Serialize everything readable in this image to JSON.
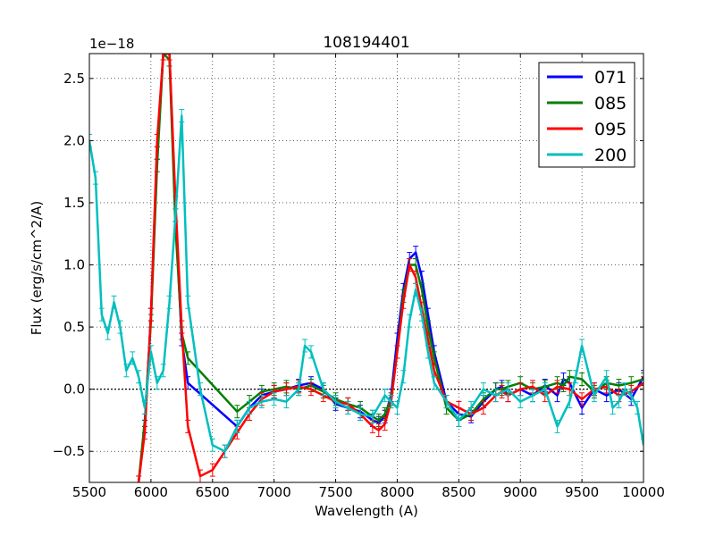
{
  "chart_data": {
    "type": "line",
    "title": "108194401",
    "xlabel": "Wavelength (A)",
    "ylabel": "Flux (erg/s/cm^2/A)",
    "offset_label": "1e−18",
    "xlim": [
      5500,
      10000
    ],
    "ylim": [
      -0.75,
      2.7
    ],
    "xticks": [
      5500,
      6000,
      6500,
      7000,
      7500,
      8000,
      8500,
      9000,
      9500,
      10000
    ],
    "xtick_labels": [
      "5500",
      "6000",
      "6500",
      "7000",
      "7500",
      "8000",
      "8500",
      "9000",
      "9500",
      "10000"
    ],
    "yticks": [
      -0.5,
      0.0,
      0.5,
      1.0,
      1.5,
      2.0,
      2.5
    ],
    "ytick_labels": [
      "−0.5",
      "0.0",
      "0.5",
      "1.0",
      "1.5",
      "2.0",
      "2.5"
    ],
    "grid": true,
    "zero_line": 0.0,
    "legend_position": "top-right",
    "series": [
      {
        "name": "071",
        "color": "#0000ff",
        "x": [
          5900,
          5950,
          6000,
          6050,
          6100,
          6150,
          6200,
          6250,
          6300,
          6700,
          6800,
          6900,
          7000,
          7100,
          7200,
          7300,
          7400,
          7500,
          7600,
          7700,
          7800,
          7850,
          7900,
          7950,
          8000,
          8050,
          8100,
          8150,
          8200,
          8250,
          8300,
          8400,
          8500,
          8600,
          8700,
          8800,
          8850,
          8900,
          9000,
          9100,
          9200,
          9300,
          9350,
          9400,
          9500,
          9600,
          9700,
          9800,
          9900,
          10000
        ],
        "y": [
          -0.75,
          -0.3,
          0.6,
          1.9,
          2.7,
          2.7,
          1.4,
          0.4,
          0.05,
          -0.3,
          -0.15,
          -0.05,
          -0.02,
          0.0,
          0.03,
          0.05,
          0.0,
          -0.12,
          -0.15,
          -0.18,
          -0.25,
          -0.27,
          -0.22,
          -0.05,
          0.4,
          0.8,
          1.05,
          1.1,
          0.9,
          0.6,
          0.3,
          -0.1,
          -0.2,
          -0.22,
          -0.1,
          0.0,
          0.02,
          -0.05,
          0.0,
          -0.05,
          0.03,
          -0.05,
          0.08,
          0.05,
          -0.15,
          0.0,
          -0.05,
          0.0,
          -0.08,
          0.1
        ]
      },
      {
        "name": "085",
        "color": "#008000",
        "x": [
          5900,
          5950,
          6000,
          6050,
          6100,
          6150,
          6200,
          6250,
          6300,
          6700,
          6800,
          6900,
          7000,
          7100,
          7200,
          7300,
          7400,
          7500,
          7600,
          7700,
          7800,
          7850,
          7900,
          7950,
          8000,
          8050,
          8100,
          8150,
          8200,
          8250,
          8300,
          8400,
          8500,
          8600,
          8700,
          8800,
          8850,
          8900,
          9000,
          9100,
          9200,
          9300,
          9350,
          9400,
          9500,
          9600,
          9700,
          9800,
          9900,
          10000
        ],
        "y": [
          -0.75,
          -0.25,
          0.55,
          1.8,
          2.7,
          2.65,
          1.3,
          0.45,
          0.25,
          -0.18,
          -0.1,
          -0.02,
          0.0,
          0.02,
          0.0,
          0.03,
          -0.02,
          -0.08,
          -0.12,
          -0.15,
          -0.22,
          -0.25,
          -0.2,
          -0.08,
          0.3,
          0.75,
          1.0,
          1.0,
          0.8,
          0.5,
          0.25,
          -0.15,
          -0.25,
          -0.2,
          -0.08,
          0.0,
          0.0,
          0.02,
          0.05,
          0.0,
          0.02,
          0.05,
          0.03,
          0.1,
          0.08,
          -0.02,
          0.05,
          0.03,
          0.05,
          0.08
        ]
      },
      {
        "name": "095",
        "color": "#ff0000",
        "x": [
          5900,
          5950,
          6000,
          6050,
          6100,
          6150,
          6200,
          6250,
          6300,
          6400,
          6500,
          6600,
          6700,
          6800,
          6900,
          7000,
          7100,
          7200,
          7300,
          7400,
          7500,
          7600,
          7700,
          7800,
          7850,
          7900,
          7950,
          8000,
          8050,
          8100,
          8150,
          8200,
          8250,
          8300,
          8400,
          8500,
          8600,
          8700,
          8800,
          8850,
          8900,
          9000,
          9100,
          9200,
          9300,
          9400,
          9500,
          9600,
          9700,
          9800,
          9900,
          10000
        ],
        "y": [
          -0.75,
          -0.35,
          0.6,
          2.0,
          2.7,
          2.7,
          1.5,
          0.5,
          -0.3,
          -0.7,
          -0.65,
          -0.5,
          -0.35,
          -0.2,
          -0.08,
          -0.02,
          0.0,
          0.02,
          0.0,
          -0.05,
          -0.1,
          -0.12,
          -0.2,
          -0.3,
          -0.33,
          -0.28,
          -0.1,
          0.3,
          0.7,
          1.0,
          0.9,
          0.65,
          0.4,
          0.15,
          -0.1,
          -0.15,
          -0.2,
          -0.15,
          -0.05,
          -0.02,
          -0.05,
          0.0,
          0.02,
          -0.05,
          0.02,
          0.0,
          -0.08,
          0.0,
          0.02,
          -0.05,
          -0.02,
          0.05
        ]
      },
      {
        "name": "200",
        "color": "#00bfbf",
        "x": [
          5500,
          5550,
          5600,
          5650,
          5700,
          5750,
          5800,
          5850,
          5900,
          5950,
          6000,
          6050,
          6100,
          6150,
          6200,
          6250,
          6300,
          6400,
          6500,
          6600,
          6700,
          6800,
          6900,
          7000,
          7100,
          7200,
          7250,
          7300,
          7400,
          7500,
          7600,
          7700,
          7800,
          7900,
          7950,
          8000,
          8050,
          8100,
          8150,
          8200,
          8250,
          8300,
          8400,
          8500,
          8600,
          8700,
          8800,
          8900,
          9000,
          9100,
          9200,
          9300,
          9400,
          9450,
          9500,
          9600,
          9700,
          9750,
          9800,
          9850,
          9900,
          9950,
          10000
        ],
        "y": [
          2.0,
          1.7,
          0.6,
          0.45,
          0.7,
          0.5,
          0.15,
          0.25,
          0.1,
          -0.15,
          0.3,
          0.05,
          0.15,
          0.7,
          1.4,
          2.2,
          0.7,
          0.0,
          -0.45,
          -0.5,
          -0.3,
          -0.15,
          -0.1,
          -0.08,
          -0.1,
          0.0,
          0.35,
          0.3,
          0.0,
          -0.1,
          -0.15,
          -0.2,
          -0.22,
          -0.05,
          -0.1,
          -0.15,
          0.1,
          0.55,
          0.8,
          0.6,
          0.3,
          0.05,
          -0.1,
          -0.25,
          -0.15,
          0.0,
          -0.05,
          0.0,
          -0.1,
          -0.05,
          0.0,
          -0.3,
          -0.1,
          0.1,
          0.35,
          -0.05,
          0.1,
          -0.15,
          -0.1,
          0.0,
          -0.05,
          -0.15,
          -0.45
        ]
      }
    ]
  }
}
